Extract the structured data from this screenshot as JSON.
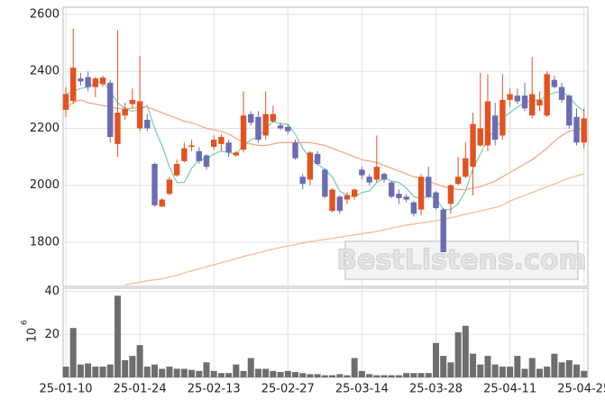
{
  "chart_data": {
    "type": "candlestick",
    "watermark": "BestListens.com",
    "categories": [
      "25-01-10",
      null,
      null,
      null,
      null,
      null,
      null,
      null,
      null,
      null,
      "25-01-24",
      null,
      null,
      null,
      null,
      null,
      null,
      null,
      null,
      null,
      "25-02-13",
      null,
      null,
      null,
      null,
      null,
      null,
      null,
      null,
      null,
      "25-02-27",
      null,
      null,
      null,
      null,
      null,
      null,
      null,
      null,
      null,
      "25-03-14",
      null,
      null,
      null,
      null,
      null,
      null,
      null,
      null,
      null,
      "25-03-28",
      null,
      null,
      null,
      null,
      null,
      null,
      null,
      null,
      null,
      "25-04-11",
      null,
      null,
      null,
      null,
      null,
      null,
      null,
      null,
      null,
      "25-04-25"
    ],
    "open": [
      2265,
      2296,
      2375,
      2380,
      2345,
      2355,
      2360,
      2145,
      2245,
      2285,
      2200,
      2230,
      2075,
      1925,
      1970,
      2035,
      2085,
      2135,
      2120,
      2105,
      2135,
      2145,
      2150,
      2105,
      2125,
      2250,
      2240,
      2175,
      2225,
      2210,
      2205,
      2150,
      2030,
      2020,
      2110,
      2055,
      1910,
      1960,
      1950,
      1960,
      2055,
      2030,
      2020,
      2040,
      2010,
      1970,
      1960,
      1940,
      1915,
      2030,
      1975,
      1915,
      1935,
      2005,
      2030,
      2065,
      2140,
      2140,
      2245,
      2175,
      2300,
      2315,
      2315,
      2245,
      2280,
      2245,
      2370,
      2345,
      2315,
      2240,
      2150
    ],
    "high": [
      2345,
      2550,
      2395,
      2400,
      2380,
      2385,
      2370,
      2545,
      2290,
      2340,
      2455,
      2250,
      2080,
      1955,
      2030,
      2090,
      2150,
      2160,
      2135,
      2110,
      2175,
      2180,
      2160,
      2120,
      2330,
      2260,
      2260,
      2330,
      2280,
      2220,
      2215,
      2160,
      2040,
      2120,
      2120,
      2060,
      1990,
      1965,
      1975,
      1990,
      2065,
      2040,
      2175,
      2045,
      2015,
      1985,
      1970,
      1945,
      2040,
      2065,
      1980,
      1920,
      2005,
      2100,
      2150,
      2255,
      2395,
      2390,
      2290,
      2390,
      2340,
      2340,
      2360,
      2450,
      2330,
      2400,
      2385,
      2360,
      2320,
      2270,
      2270
    ],
    "low": [
      2240,
      2285,
      2350,
      2330,
      2310,
      2345,
      2150,
      2100,
      2230,
      2270,
      2190,
      2190,
      1925,
      1925,
      1965,
      2030,
      2080,
      2120,
      2075,
      2055,
      2125,
      2120,
      2100,
      2100,
      2115,
      2210,
      2150,
      2160,
      2220,
      2195,
      2180,
      2090,
      1985,
      2000,
      2070,
      1955,
      1905,
      1900,
      1935,
      1950,
      2020,
      2000,
      2010,
      2010,
      1955,
      1935,
      1940,
      1890,
      1895,
      1955,
      1915,
      1765,
      1900,
      2000,
      2025,
      1965,
      2135,
      2120,
      2140,
      2160,
      2275,
      2285,
      2260,
      2235,
      2260,
      2240,
      2340,
      2290,
      2200,
      2140,
      2130
    ],
    "close": [
      2320,
      2413,
      2365,
      2345,
      2375,
      2378,
      2170,
      2255,
      2268,
      2300,
      2295,
      2200,
      1930,
      1950,
      2020,
      2075,
      2130,
      2140,
      2085,
      2065,
      2160,
      2170,
      2115,
      2115,
      2245,
      2220,
      2160,
      2250,
      2250,
      2200,
      2190,
      2095,
      2005,
      2115,
      2075,
      1960,
      1985,
      1910,
      1965,
      1985,
      2035,
      2010,
      2065,
      2020,
      1960,
      1955,
      1950,
      1900,
      2030,
      1960,
      1920,
      1765,
      2000,
      2030,
      2095,
      2215,
      2200,
      2295,
      2160,
      2300,
      2320,
      2295,
      2270,
      2320,
      2300,
      2390,
      2345,
      2300,
      2210,
      2150,
      2235
    ],
    "up_color": "#e2531f",
    "down_color": "#6a6cb4",
    "series": [
      {
        "color": "#7fd0b4",
        "values": [
          2320,
          2330,
          2340,
          2345,
          2360,
          2365,
          2330,
          2290,
          2270,
          2260,
          2265,
          2280,
          2200,
          2140,
          2065,
          2010,
          2010,
          2060,
          2090,
          2090,
          2110,
          2120,
          2115,
          2110,
          2140,
          2160,
          2170,
          2200,
          2225,
          2215,
          2215,
          2180,
          2130,
          2095,
          2075,
          2055,
          2030,
          1980,
          1965,
          1960,
          1975,
          1980,
          2010,
          2025,
          2015,
          2010,
          1990,
          1960,
          1955,
          1960,
          1955,
          1915,
          1915,
          1935,
          1980,
          2060,
          2110,
          2165,
          2195,
          2235,
          2255,
          2275,
          2290,
          2300,
          2300,
          2315,
          2325,
          2330,
          2310,
          2280,
          2260
        ]
      },
      {
        "color": "#f2a88a",
        "values": [
          2270,
          2290,
          2300,
          2290,
          2285,
          2280,
          2275,
          2270,
          2270,
          2270,
          2275,
          2275,
          2265,
          2255,
          2245,
          2235,
          2225,
          2220,
          2210,
          2200,
          2195,
          2190,
          2180,
          2165,
          2150,
          2145,
          2140,
          2140,
          2145,
          2150,
          2150,
          2150,
          2150,
          2150,
          2145,
          2140,
          2130,
          2120,
          2110,
          2100,
          2090,
          2085,
          2080,
          2070,
          2060,
          2050,
          2040,
          2030,
          2025,
          2015,
          2005,
          1995,
          1990,
          1985,
          1985,
          1990,
          1995,
          2005,
          2015,
          2030,
          2045,
          2060,
          2075,
          2090,
          2110,
          2130,
          2155,
          2175,
          2190,
          2195,
          2200
        ]
      },
      {
        "color": "#f4bd94",
        "values": [
          null,
          null,
          null,
          null,
          null,
          null,
          null,
          null,
          1650,
          1655,
          1660,
          1665,
          1668,
          1672,
          1678,
          1685,
          1692,
          1700,
          1707,
          1714,
          1721,
          1728,
          1735,
          1742,
          1750,
          1757,
          1763,
          1770,
          1776,
          1782,
          1787,
          1792,
          1797,
          1802,
          1806,
          1810,
          1814,
          1818,
          1822,
          1826,
          1830,
          1834,
          1838,
          1844,
          1850,
          1855,
          1860,
          1864,
          1868,
          1872,
          1876,
          1880,
          1886,
          1892,
          1898,
          1904,
          1910,
          1916,
          1922,
          1930,
          1945,
          1955,
          1965,
          1975,
          1985,
          1995,
          2005,
          2015,
          2025,
          2033,
          2040
        ]
      }
    ],
    "ylim": [
      1645,
      2600
    ],
    "yticks": [
      1800,
      2000,
      2200,
      2400,
      2600
    ],
    "grid": true,
    "volume": {
      "color": "#6e6e6e",
      "y_label": "10",
      "y_label_exponent": "6",
      "ylim": [
        0,
        41.5
      ],
      "yticks": [
        20,
        40
      ],
      "values": [
        5,
        23,
        6,
        6.5,
        5,
        5,
        6,
        38,
        8,
        10,
        15,
        5,
        6,
        4,
        5,
        4,
        4,
        3.5,
        3,
        7,
        3,
        2,
        2,
        6,
        3,
        9,
        4,
        4,
        3,
        2.5,
        3,
        2.5,
        2,
        1.5,
        1.5,
        1,
        1,
        1.5,
        1,
        9,
        3,
        1.5,
        1,
        1,
        1,
        1,
        2,
        2,
        2,
        2,
        16,
        10,
        7,
        21,
        24,
        11,
        6,
        10,
        6,
        5,
        5,
        10,
        4,
        9,
        4,
        5,
        11,
        7,
        8,
        6,
        3
      ]
    }
  }
}
